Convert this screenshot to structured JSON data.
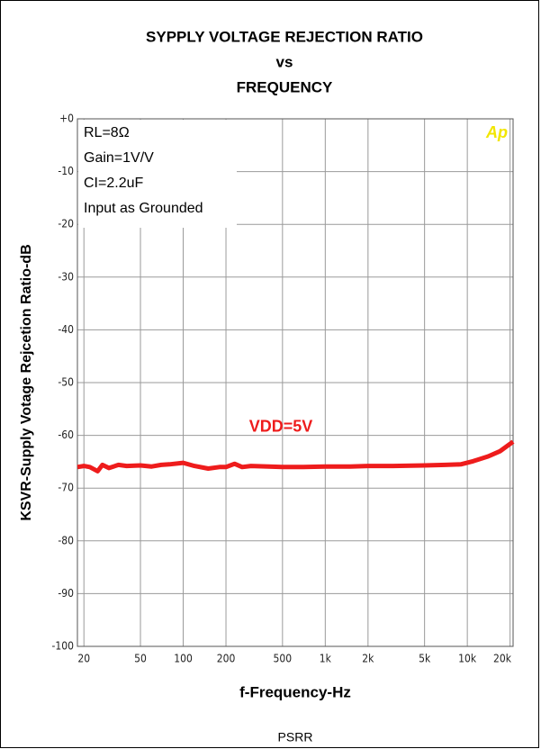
{
  "chart_data": {
    "type": "line",
    "title": [
      "SYPPLY VOLTAGE REJECTION RATIO",
      "vs",
      "FREQUENCY"
    ],
    "y_label": "KSVR-Supply Votage Rejcetion Ratio-dB",
    "x_label": "f-Frequency-Hz",
    "caption": "PSRR",
    "annotations": [
      "RL=8Ω",
      "Gain=1V/V",
      "CI=2.2uF",
      "Input as Grounded"
    ],
    "logo": "Ap",
    "log_x": true,
    "grid": true,
    "xlim": [
      18,
      21000
    ],
    "ylim": [
      -100,
      0
    ],
    "xticks": [
      20,
      50,
      100,
      200,
      500,
      {
        "value": 1000,
        "label": "1k"
      },
      {
        "value": 2000,
        "label": "2k"
      },
      {
        "value": 5000,
        "label": "5k"
      },
      {
        "value": 10000,
        "label": "10k"
      },
      {
        "value": 20000,
        "label": "20k"
      }
    ],
    "yticks": [
      {
        "value": 0,
        "label": "+0"
      },
      -10,
      -20,
      -30,
      -40,
      -50,
      -60,
      -70,
      -80,
      -90,
      -100
    ],
    "x": [
      18,
      20,
      22,
      25,
      27,
      30,
      35,
      40,
      50,
      60,
      70,
      80,
      100,
      120,
      150,
      180,
      200,
      230,
      260,
      300,
      400,
      500,
      700,
      1000,
      1500,
      2000,
      3000,
      5000,
      7000,
      9000,
      11000,
      14000,
      17000,
      21000
    ],
    "series": [
      {
        "name": "VDD=5V",
        "color": "#ee1c1c",
        "values": [
          -66,
          -65.8,
          -66,
          -66.8,
          -65.6,
          -66.2,
          -65.6,
          -65.8,
          -65.7,
          -65.9,
          -65.6,
          -65.5,
          -65.2,
          -65.8,
          -66.3,
          -66,
          -66,
          -65.4,
          -66,
          -65.8,
          -65.9,
          -66,
          -66,
          -65.9,
          -65.9,
          -65.8,
          -65.8,
          -65.7,
          -65.6,
          -65.5,
          -64.9,
          -64,
          -63,
          -61.2
        ]
      }
    ]
  }
}
